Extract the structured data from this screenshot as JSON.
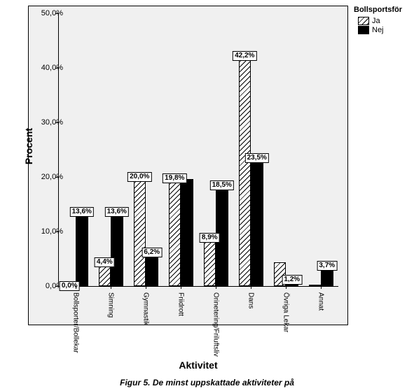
{
  "chart": {
    "type": "bar",
    "title": null,
    "background_color": "#f0f0f0",
    "panel_border_color": "#000000",
    "ylabel": "Procent",
    "xlabel": "Aktivitet",
    "label_fontsize": 14,
    "tick_fontsize": 11,
    "ylim": [
      0,
      50
    ],
    "ytick_step": 10,
    "yticks": [
      "0,0%",
      "10,0%",
      "20,0%",
      "30,0%",
      "40,0%",
      "50,0%"
    ],
    "bar_group_width": 0.7,
    "bar_outline_color": "#000000",
    "value_label_bg": "#ffffff",
    "categories": [
      "Bollsporter/Bollekar",
      "Simning",
      "Gymnastik",
      "Friidrott",
      "Orinetering/Friluftsliv",
      "Dans",
      "Övriga Lekar",
      "Annat"
    ],
    "series": [
      {
        "name": "Ja",
        "pattern": "diagonal-hatch",
        "values": [
          0.0,
          4.4,
          20.0,
          19.8,
          8.9,
          42.2,
          4.4,
          0.0
        ],
        "labels_visible": [
          "0,0%",
          "4,4%",
          "20,0%",
          "19,8%",
          "8,9%",
          "42,2%",
          null,
          null
        ]
      },
      {
        "name": "Nej",
        "color": "#000000",
        "values": [
          13.6,
          13.6,
          6.2,
          19.6,
          18.5,
          23.5,
          1.2,
          3.7
        ],
        "labels_visible": [
          "13,6%",
          "13,6%",
          "6,2%",
          null,
          "18,5%",
          "23,5%",
          "1,2%",
          "3,7%"
        ]
      }
    ]
  },
  "legend": {
    "title": "Bollsportsför",
    "items": [
      "Ja",
      "Nej"
    ]
  },
  "caption": {
    "prefix": "Figur 5",
    "text": "De minst uppskattade aktiviteter på"
  }
}
